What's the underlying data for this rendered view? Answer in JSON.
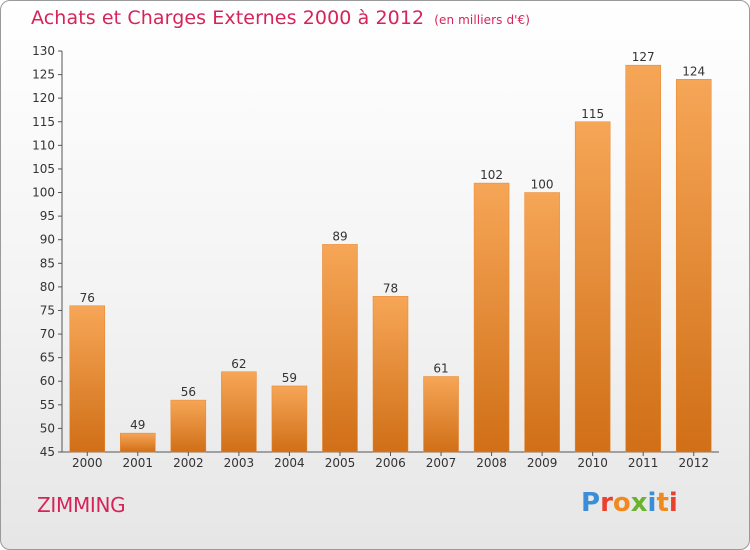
{
  "title": "Achats et Charges Externes 2000 à 2012",
  "unit_label": "(en milliers d'€)",
  "commune": "ZIMMING",
  "logo_text": "Proxiti",
  "colors": {
    "title": "#d6245a",
    "bar_light": "#f6a657",
    "bar_dark": "#d06f17",
    "logo": [
      "#3a8ed8",
      "#e9412e",
      "#f08a1e",
      "#6ab42d",
      "#3a8ed8",
      "#f08a1e",
      "#e9412e"
    ]
  },
  "chart_data": {
    "type": "bar",
    "title": "Achats et Charges Externes 2000 à 2012",
    "subtitle": "(en milliers d'€)",
    "xlabel": "",
    "ylabel": "",
    "categories": [
      "2000",
      "2001",
      "2002",
      "2003",
      "2004",
      "2005",
      "2006",
      "2007",
      "2008",
      "2009",
      "2010",
      "2011",
      "2012"
    ],
    "values": [
      76,
      49,
      56,
      62,
      59,
      89,
      78,
      61,
      102,
      100,
      115,
      127,
      124
    ],
    "ylim": [
      45,
      130
    ],
    "yticks": [
      45,
      50,
      55,
      60,
      65,
      70,
      75,
      80,
      85,
      90,
      95,
      100,
      105,
      110,
      115,
      120,
      125,
      130
    ],
    "grid": false,
    "data_labels": true
  }
}
